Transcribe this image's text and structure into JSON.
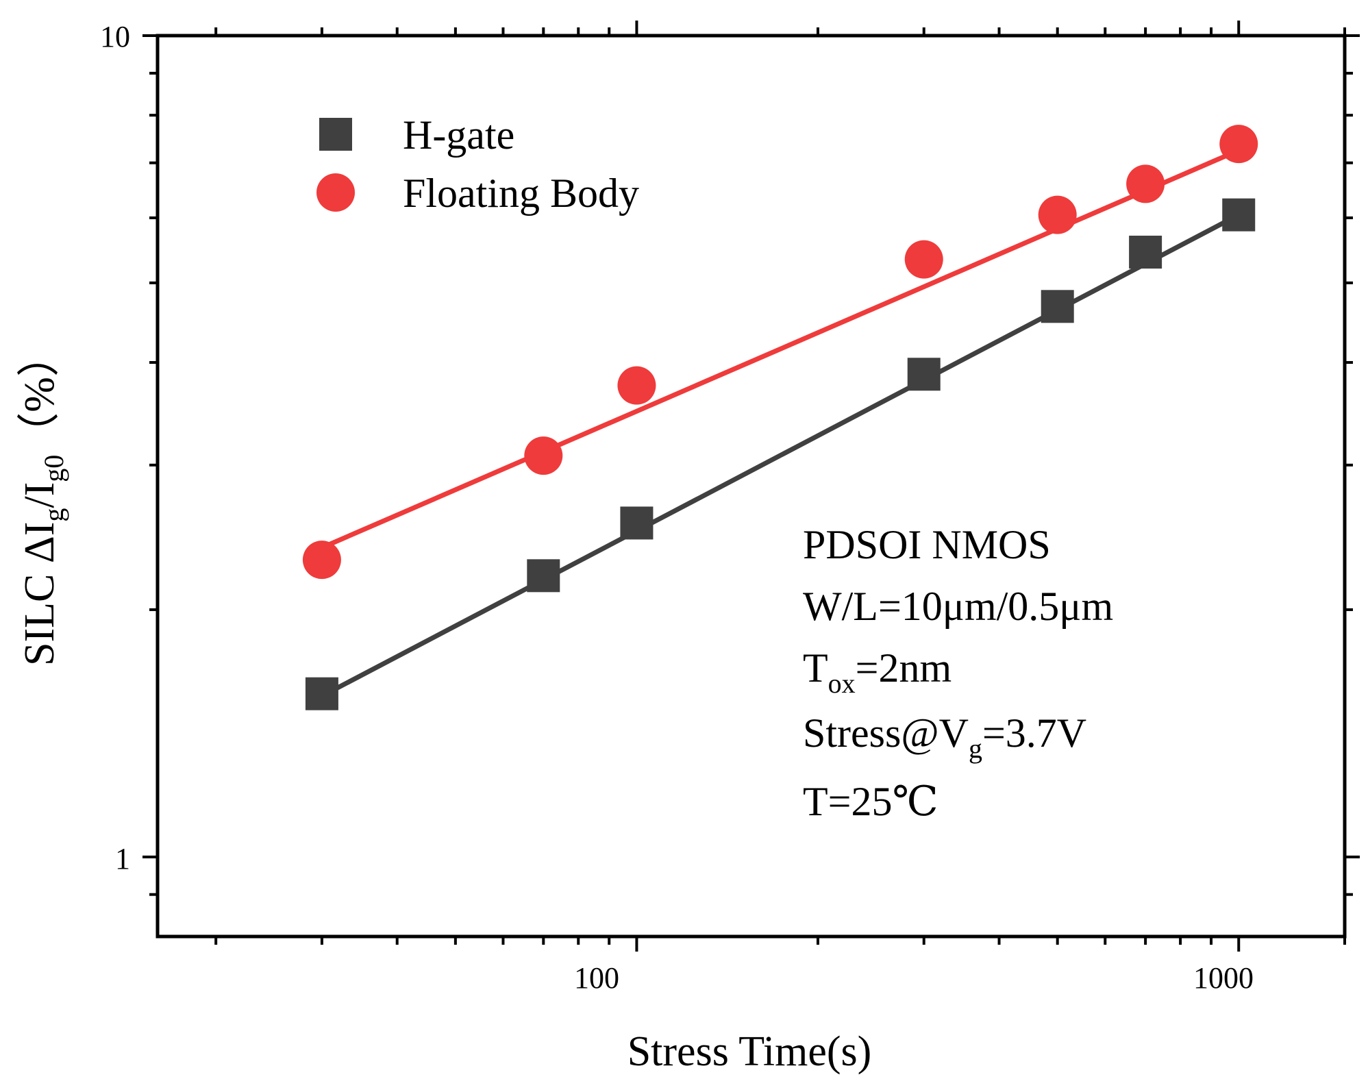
{
  "chart_data": {
    "type": "scatter",
    "title": "",
    "xlabel": "Stress Time(s)",
    "ylabel": {
      "main": "SILC ΔI",
      "sub1": "g",
      "mid": "/I",
      "sub2": "g0",
      "unit": "（%）"
    },
    "x_scale": "log",
    "y_scale": "log",
    "xlim": [
      16,
      1500
    ],
    "ylim": [
      0.8,
      10
    ],
    "x_tick_labels": [
      "100",
      "1000"
    ],
    "y_tick_labels": [
      "1",
      "10"
    ],
    "legend_position": "top-left",
    "series": [
      {
        "name": "H-gate",
        "marker": "square",
        "color": "#404040",
        "x": [
          30,
          70,
          100,
          300,
          500,
          700,
          1000
        ],
        "y": [
          1.58,
          2.2,
          2.55,
          3.87,
          4.68,
          5.45,
          6.05
        ],
        "fit_line": {
          "x": [
            30,
            1000
          ],
          "y": [
            1.57,
            6.05
          ]
        }
      },
      {
        "name": "Floating Body",
        "marker": "circle",
        "color": "#ef3b3b",
        "x": [
          30,
          70,
          100,
          300,
          500,
          700,
          1000
        ],
        "y": [
          2.3,
          3.08,
          3.75,
          5.34,
          6.05,
          6.6,
          7.38
        ],
        "fit_line": {
          "x": [
            30,
            1000
          ],
          "y": [
            2.38,
            7.25
          ]
        }
      }
    ],
    "annotations": {
      "line1": "PDSOI NMOS",
      "line2": "W/L=10μm/0.5μm",
      "line3": {
        "main": "T",
        "sub": "ox",
        "rest": "=2nm"
      },
      "line4": {
        "main": "Stress@V",
        "sub": "g",
        "rest": "=3.7V"
      },
      "line5": "T=25℃"
    }
  }
}
